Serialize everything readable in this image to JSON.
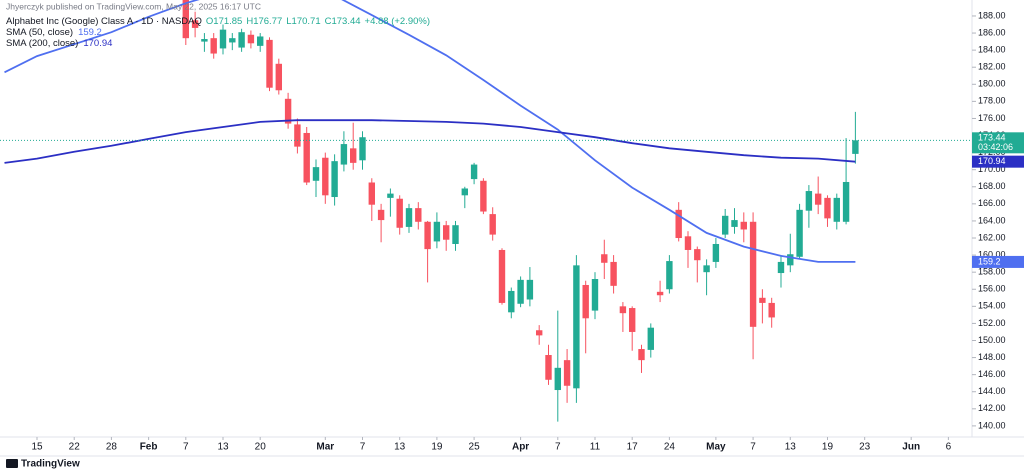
{
  "header": {
    "byline": "Jhyerczyk published on TradingView.com, May 22, 2025 16:17 UTC",
    "symbol": "Alphabet Inc (Google) Class A · 1D · NASDAQ",
    "ohlc": [
      "O171.85",
      "H176.77",
      "L170.71",
      "C173.44",
      "+4.88 (+2.90%)"
    ]
  },
  "footer": {
    "brand": "TradingView"
  },
  "chart_data": {
    "type": "candlestick",
    "up_color": "#22ab94",
    "down_color": "#f7525f",
    "x": [
      16,
      17,
      18,
      19,
      20,
      21,
      22,
      23,
      24,
      25,
      26,
      27,
      28,
      29,
      30,
      31,
      32,
      33,
      34,
      35,
      36,
      37,
      38,
      39,
      40,
      41,
      42,
      43,
      44,
      45,
      46,
      47,
      48,
      49,
      50,
      51,
      52,
      53,
      54,
      55,
      56,
      57,
      58,
      59,
      60,
      61,
      62,
      63,
      64,
      65,
      66,
      67,
      68,
      69,
      70,
      71,
      72,
      73,
      74,
      75,
      76,
      77,
      78,
      79,
      80,
      81,
      82,
      83,
      84,
      85,
      86,
      87,
      88
    ],
    "open": [
      190.5,
      187.5,
      185.0,
      185.4,
      184.2,
      184.9,
      184.3,
      185.8,
      184.5,
      185.2,
      182.4,
      178.3,
      175.3,
      174.3,
      168.7,
      171.4,
      166.8,
      170.6,
      172.5,
      171.1,
      168.5,
      165.3,
      166.7,
      166.6,
      163.3,
      165.5,
      163.9,
      161.6,
      163.5,
      161.3,
      167.0,
      168.9,
      168.7,
      164.8,
      160.6,
      153.3,
      154.3,
      154.8,
      151.2,
      148.3,
      144.2,
      147.7,
      144.4,
      156.5,
      153.5,
      160.1,
      159.2,
      154.0,
      153.8,
      149.0,
      148.9,
      155.7,
      156.0,
      165.3,
      162.2,
      160.7,
      158.0,
      159.2,
      162.4,
      163.3,
      163.9,
      163.9,
      155.0,
      154.4,
      157.9,
      158.8,
      159.8,
      165.2,
      167.2,
      166.7,
      163.9,
      163.9,
      171.85
    ],
    "high": [
      191.5,
      188.5,
      186.0,
      186.0,
      187.0,
      186.0,
      186.5,
      186.3,
      186.0,
      185.5,
      183.0,
      179.0,
      176.0,
      175.0,
      171.2,
      172.0,
      171.8,
      174.5,
      175.5,
      174.5,
      169.0,
      166.0,
      167.8,
      167.0,
      166.0,
      166.2,
      164.0,
      165.0,
      164.0,
      164.0,
      168.0,
      170.8,
      169.0,
      165.6,
      160.8,
      156.2,
      157.5,
      158.6,
      151.8,
      149.5,
      153.5,
      149.0,
      160.0,
      157.0,
      158.0,
      161.8,
      160.0,
      154.5,
      154.0,
      149.5,
      152.0,
      157.0,
      160.0,
      166.2,
      162.8,
      161.0,
      159.5,
      162.0,
      165.4,
      165.5,
      165.0,
      165.0,
      156.0,
      155.0,
      160.0,
      162.5,
      166.0,
      168.2,
      169.2,
      167.0,
      167.2,
      173.7,
      176.77
    ],
    "low": [
      184.6,
      185.5,
      183.8,
      183.0,
      183.5,
      184.0,
      183.8,
      184.2,
      183.8,
      179.2,
      178.8,
      174.8,
      171.9,
      168.2,
      166.8,
      166.0,
      165.8,
      169.8,
      170.0,
      170.0,
      164.0,
      161.5,
      164.5,
      162.4,
      162.6,
      163.0,
      156.8,
      160.8,
      160.5,
      160.5,
      165.5,
      168.3,
      164.8,
      161.7,
      154.2,
      152.6,
      153.9,
      154.0,
      149.5,
      144.8,
      140.5,
      142.7,
      142.7,
      148.5,
      152.5,
      157.2,
      155.5,
      151.0,
      148.8,
      146.2,
      148.0,
      154.5,
      155.5,
      161.6,
      158.5,
      156.8,
      155.3,
      158.5,
      162.0,
      162.5,
      161.5,
      147.8,
      152.0,
      151.5,
      156.2,
      158.0,
      159.5,
      163.2,
      164.8,
      163.3,
      163.0,
      163.6,
      170.71
    ],
    "close": [
      185.4,
      186.6,
      185.3,
      183.6,
      186.4,
      185.4,
      186.1,
      184.8,
      185.6,
      179.6,
      179.3,
      175.4,
      172.7,
      168.5,
      170.3,
      167.0,
      171.0,
      173.0,
      170.8,
      173.8,
      165.9,
      164.1,
      167.2,
      163.2,
      165.5,
      163.9,
      160.7,
      163.9,
      161.8,
      163.5,
      167.8,
      170.6,
      165.1,
      162.4,
      154.4,
      155.8,
      157.1,
      157.1,
      150.6,
      145.4,
      146.8,
      144.7,
      158.8,
      152.6,
      157.2,
      159.1,
      156.4,
      153.2,
      151.0,
      147.7,
      151.5,
      155.3,
      159.3,
      162.0,
      160.6,
      159.4,
      158.8,
      161.3,
      164.6,
      164.1,
      163.0,
      151.6,
      154.4,
      152.7,
      159.2,
      160.1,
      165.3,
      167.5,
      165.9,
      164.3,
      166.7,
      168.56,
      173.44
    ],
    "series": [
      {
        "name": "SMA (50, close)",
        "color": "#4f6ff0",
        "value_label": "159.2",
        "x": [
          -3.5,
          0,
          4,
          8,
          12,
          16,
          20,
          24,
          28,
          32,
          36,
          40,
          44,
          48,
          52,
          56,
          60,
          64,
          68,
          72,
          76,
          80,
          84,
          88
        ],
        "values": [
          181.4,
          183.3,
          184.7,
          186.1,
          187.9,
          189.5,
          190.8,
          191.5,
          191.4,
          190.4,
          188.1,
          185.8,
          183.4,
          180.5,
          177.5,
          174.7,
          171.1,
          167.9,
          165.3,
          162.6,
          161.0,
          159.9,
          159.2,
          159.2
        ]
      },
      {
        "name": "SMA (200, close)",
        "color": "#2b2fc4",
        "value_label": "170.94",
        "x": [
          -3.5,
          0,
          4,
          8,
          12,
          16,
          20,
          24,
          28,
          32,
          36,
          40,
          44,
          48,
          52,
          56,
          60,
          64,
          68,
          72,
          76,
          80,
          84,
          88
        ],
        "values": [
          170.8,
          171.3,
          172.1,
          172.8,
          173.6,
          174.4,
          175.0,
          175.6,
          175.8,
          175.8,
          175.8,
          175.7,
          175.6,
          175.4,
          175.0,
          174.4,
          173.8,
          173.1,
          172.5,
          172.1,
          171.7,
          171.4,
          171.3,
          170.94
        ]
      }
    ],
    "last_price": {
      "value": 173.44,
      "label": "173.44",
      "countdown": "03:42:06"
    },
    "xlim": [
      -3.98,
      100.54
    ],
    "ylim": [
      138.7,
      189.87
    ],
    "xticks": [
      {
        "value": 0,
        "label": "15"
      },
      {
        "value": 4,
        "label": "22"
      },
      {
        "value": 8,
        "label": "28"
      },
      {
        "value": 12,
        "label": "Feb"
      },
      {
        "value": 16,
        "label": "7"
      },
      {
        "value": 20,
        "label": "13"
      },
      {
        "value": 24,
        "label": "20"
      },
      {
        "value": 31,
        "label": "Mar"
      },
      {
        "value": 35,
        "label": "7"
      },
      {
        "value": 39,
        "label": "13"
      },
      {
        "value": 43,
        "label": "19"
      },
      {
        "value": 47,
        "label": "25"
      },
      {
        "value": 52,
        "label": "Apr"
      },
      {
        "value": 56,
        "label": "7"
      },
      {
        "value": 60,
        "label": "11"
      },
      {
        "value": 64,
        "label": "17"
      },
      {
        "value": 68,
        "label": "24"
      },
      {
        "value": 73,
        "label": "May"
      },
      {
        "value": 77,
        "label": "7"
      },
      {
        "value": 81,
        "label": "13"
      },
      {
        "value": 85,
        "label": "19"
      },
      {
        "value": 89,
        "label": "23"
      },
      {
        "value": 94,
        "label": "Jun"
      },
      {
        "value": 98,
        "label": "6"
      }
    ],
    "yticks": [
      {
        "value": 140,
        "label": "140.00"
      },
      {
        "value": 142,
        "label": "142.00"
      },
      {
        "value": 144,
        "label": "144.00"
      },
      {
        "value": 146,
        "label": "146.00"
      },
      {
        "value": 148,
        "label": "148.00"
      },
      {
        "value": 150,
        "label": "150.00"
      },
      {
        "value": 152,
        "label": "152.00"
      },
      {
        "value": 154,
        "label": "154.00"
      },
      {
        "value": 156,
        "label": "156.00"
      },
      {
        "value": 158,
        "label": "158.00"
      },
      {
        "value": 160,
        "label": "160.00"
      },
      {
        "value": 162,
        "label": "162.00"
      },
      {
        "value": 164,
        "label": "164.00"
      },
      {
        "value": 166,
        "label": "166.00"
      },
      {
        "value": 168,
        "label": "168.00"
      },
      {
        "value": 170,
        "label": "170.00"
      },
      {
        "value": 172,
        "label": "172.00"
      },
      {
        "value": 174,
        "label": "174.00"
      },
      {
        "value": 176,
        "label": "176.00"
      },
      {
        "value": 178,
        "label": "178.00"
      },
      {
        "value": 180,
        "label": "180.00"
      },
      {
        "value": 182,
        "label": "182.00"
      },
      {
        "value": 184,
        "label": "184.00"
      },
      {
        "value": 186,
        "label": "186.00"
      },
      {
        "value": 188,
        "label": "188.00"
      }
    ]
  }
}
